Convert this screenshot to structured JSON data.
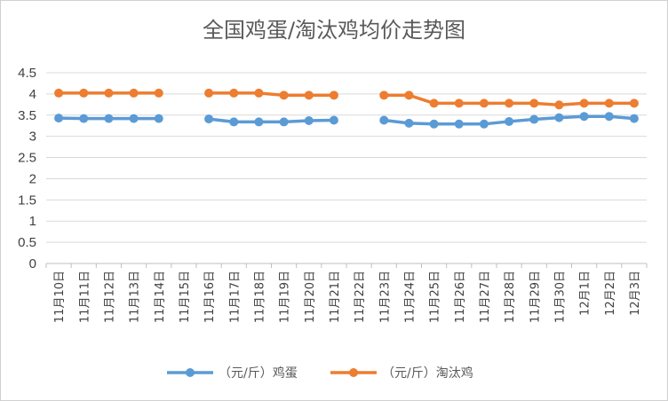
{
  "chart_data": {
    "type": "line",
    "title": "全国鸡蛋/淘汰鸡均价走势图",
    "xlabel": "",
    "ylabel": "",
    "ylim": [
      0,
      4.5
    ],
    "yticks": [
      0,
      0.5,
      1,
      1.5,
      2,
      2.5,
      3,
      3.5,
      4,
      4.5
    ],
    "grid": true,
    "legend_position": "bottom",
    "categories": [
      "11月10日",
      "11月11日",
      "11月12日",
      "11月13日",
      "11月14日",
      "11月15日",
      "11月16日",
      "11月17日",
      "11月18日",
      "11月19日",
      "11月20日",
      "11月21日",
      "11月22日",
      "11月23日",
      "11月24日",
      "11月25日",
      "11月26日",
      "11月27日",
      "11月28日",
      "11月29日",
      "11月30日",
      "12月1日",
      "12月2日",
      "12月3日"
    ],
    "series": [
      {
        "name": "（元/斤）鸡蛋",
        "color": "#5b9bd5",
        "values": [
          3.43,
          3.42,
          3.42,
          3.42,
          3.42,
          null,
          3.41,
          3.34,
          3.34,
          3.34,
          3.37,
          3.38,
          null,
          3.38,
          3.31,
          3.29,
          3.29,
          3.29,
          3.35,
          3.4,
          3.44,
          3.47,
          3.47,
          3.42
        ]
      },
      {
        "name": "（元/斤）淘汰鸡",
        "color": "#ed7d31",
        "values": [
          4.02,
          4.02,
          4.02,
          4.02,
          4.02,
          null,
          4.02,
          4.02,
          4.02,
          3.97,
          3.97,
          3.97,
          null,
          3.97,
          3.97,
          3.78,
          3.78,
          3.78,
          3.78,
          3.78,
          3.74,
          3.78,
          3.78,
          3.78
        ]
      }
    ]
  }
}
